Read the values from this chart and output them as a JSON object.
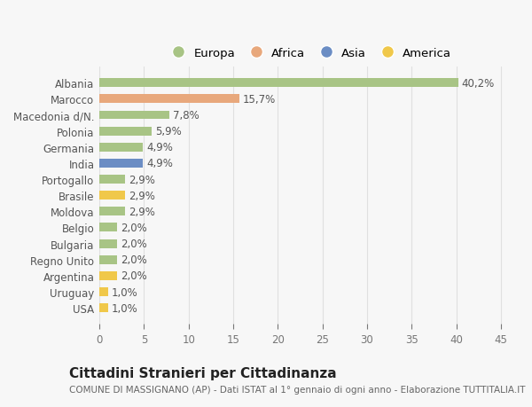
{
  "countries": [
    "Albania",
    "Marocco",
    "Macedonia d/N.",
    "Polonia",
    "Germania",
    "India",
    "Portogallo",
    "Brasile",
    "Moldova",
    "Belgio",
    "Bulgaria",
    "Regno Unito",
    "Argentina",
    "Uruguay",
    "USA"
  ],
  "values": [
    40.2,
    15.7,
    7.8,
    5.9,
    4.9,
    4.9,
    2.9,
    2.9,
    2.9,
    2.0,
    2.0,
    2.0,
    2.0,
    1.0,
    1.0
  ],
  "labels": [
    "40,2%",
    "15,7%",
    "7,8%",
    "5,9%",
    "4,9%",
    "4,9%",
    "2,9%",
    "2,9%",
    "2,9%",
    "2,0%",
    "2,0%",
    "2,0%",
    "2,0%",
    "1,0%",
    "1,0%"
  ],
  "continents": [
    "Europa",
    "Africa",
    "Europa",
    "Europa",
    "Europa",
    "Asia",
    "Europa",
    "America",
    "Europa",
    "Europa",
    "Europa",
    "Europa",
    "America",
    "America",
    "America"
  ],
  "continent_colors": {
    "Europa": "#a8c485",
    "Africa": "#e8a87c",
    "Asia": "#6b8dc4",
    "America": "#f0c84a"
  },
  "legend_order": [
    "Europa",
    "Africa",
    "Asia",
    "America"
  ],
  "title": "Cittadini Stranieri per Cittadinanza",
  "subtitle": "COMUNE DI MASSIGNANO (AP) - Dati ISTAT al 1° gennaio di ogni anno - Elaborazione TUTTITALIA.IT",
  "xlabel_ticks": [
    0,
    5,
    10,
    15,
    20,
    25,
    30,
    35,
    40,
    45
  ],
  "xlim": [
    0,
    47
  ],
  "background_color": "#f7f7f7",
  "grid_color": "#e0e0e0",
  "bar_height": 0.55,
  "title_fontsize": 11,
  "subtitle_fontsize": 7.5,
  "tick_fontsize": 8.5,
  "label_fontsize": 8.5,
  "legend_fontsize": 9.5
}
